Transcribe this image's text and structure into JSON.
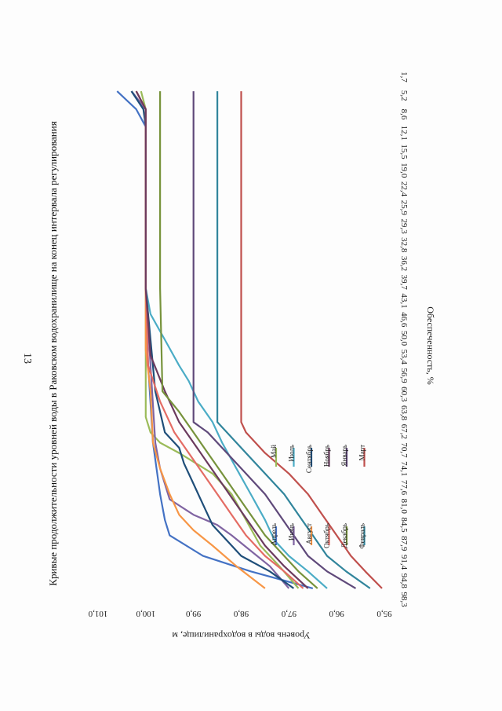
{
  "page_number": "13",
  "chart_data": {
    "type": "line",
    "title": "Кривые продолжительности уровней воды в Раковском водохранилище на конец интервала регулирования",
    "xlabel": "Обеспеченность, %",
    "ylabel": "Уровень воды в водохранилище, м",
    "categories": [
      "1,7",
      "5,2",
      "8,6",
      "12,1",
      "15,5",
      "19,0",
      "22,4",
      "25,9",
      "29,3",
      "32,8",
      "36,2",
      "39,7",
      "43,1",
      "46,6",
      "50,0",
      "53,4",
      "56,9",
      "60,3",
      "63,8",
      "67,2",
      "70,7",
      "74,1",
      "77,6",
      "81,0",
      "84,5",
      "87,9",
      "91,4",
      "94,8",
      "98,3"
    ],
    "xlim": [
      0,
      100
    ],
    "ylim": [
      95.0,
      101.0
    ],
    "yticks": [
      "101,0",
      "100,0",
      "99,0",
      "98,0",
      "97,0",
      "96,0",
      "95,0"
    ],
    "ytick_values": [
      101,
      100,
      99,
      98,
      97,
      96,
      95
    ],
    "legend_position": "inside",
    "series": [
      {
        "name": "Апрель",
        "color": "#4472c4",
        "x": [
          1.7,
          5.2,
          8.6,
          40,
          55,
          70,
          80,
          85,
          88,
          92,
          95,
          98.3
        ],
        "y": [
          100.6,
          100.2,
          100.0,
          100.0,
          99.95,
          99.85,
          99.7,
          99.6,
          99.5,
          98.8,
          97.8,
          96.5
        ]
      },
      {
        "name": "Май",
        "color": "#9bbb59",
        "x": [
          1.7,
          5.2,
          8.6,
          40,
          50,
          60,
          65,
          68,
          70,
          72,
          76,
          80,
          85,
          90,
          94,
          98.3
        ],
        "y": [
          100.1,
          100.0,
          100.0,
          100.0,
          100.0,
          100.0,
          100.0,
          99.9,
          99.7,
          99.3,
          98.6,
          98.2,
          97.9,
          97.6,
          97.2,
          96.8
        ]
      },
      {
        "name": "Июль",
        "color": "#4bacc6",
        "x": [
          1.7,
          5.2,
          8.6,
          40,
          45,
          50,
          55,
          58,
          62,
          66,
          70,
          75,
          80,
          85,
          89,
          92,
          95,
          98.3
        ],
        "y": [
          100.3,
          100.0,
          100.0,
          100.0,
          99.9,
          99.6,
          99.3,
          99.1,
          98.9,
          98.6,
          98.4,
          98.1,
          97.8,
          97.5,
          97.3,
          97.0,
          96.6,
          96.2
        ]
      },
      {
        "name": "Июнь",
        "color": "#8064a2",
        "x": [
          1.7,
          5.2,
          8.6,
          40,
          55,
          70,
          75,
          78,
          81,
          84,
          86,
          88,
          91,
          94,
          98.3
        ],
        "y": [
          100.3,
          100.0,
          100.0,
          100.0,
          99.9,
          99.8,
          99.7,
          99.6,
          99.5,
          99.0,
          98.5,
          98.2,
          97.8,
          97.4,
          97.0
        ]
      },
      {
        "name": "Сентябрь",
        "color": "#1f4e79",
        "x": [
          1.7,
          5.2,
          8.6,
          40,
          50,
          60,
          68,
          71,
          74,
          78,
          82,
          86,
          89,
          92,
          95,
          98.3
        ],
        "y": [
          100.3,
          100.05,
          100.0,
          100.0,
          99.9,
          99.8,
          99.6,
          99.3,
          99.2,
          99.0,
          98.8,
          98.6,
          98.3,
          98.0,
          97.4,
          96.9
        ]
      },
      {
        "name": "Август",
        "color": "#f79646",
        "x": [
          1.7,
          5.2,
          8.6,
          40,
          52,
          60,
          70,
          75,
          80,
          84,
          87,
          90,
          94,
          98.3
        ],
        "y": [
          100.2,
          100.0,
          100.0,
          100.0,
          100.0,
          99.9,
          99.85,
          99.7,
          99.5,
          99.3,
          99.0,
          98.6,
          98.1,
          97.5
        ]
      },
      {
        "name": "Октябрь",
        "color": "#e46c64",
        "x": [
          1.7,
          5.2,
          8.6,
          40,
          55,
          62,
          68,
          72,
          76,
          80,
          84,
          88,
          92,
          95,
          98.3
        ],
        "y": [
          100.2,
          100.0,
          100.0,
          100.0,
          99.95,
          99.7,
          99.4,
          99.1,
          98.8,
          98.5,
          98.2,
          97.9,
          97.5,
          97.1,
          96.7
        ]
      },
      {
        "name": "Ноябрь",
        "color": "#6b3a5e",
        "x": [
          1.7,
          5.2,
          8.6,
          40,
          53,
          60,
          66,
          70,
          74,
          78,
          82,
          86,
          90,
          94,
          98.3
        ],
        "y": [
          100.2,
          100.0,
          100.0,
          100.0,
          99.9,
          99.6,
          99.3,
          99.0,
          98.7,
          98.4,
          98.1,
          97.8,
          97.5,
          97.1,
          96.6
        ]
      },
      {
        "name": "Декабрь",
        "color": "#77933c",
        "x": [
          1.7,
          5.2,
          8.6,
          40,
          60,
          64,
          68,
          72,
          76,
          80,
          84,
          88,
          92,
          95,
          98.3
        ],
        "y": [
          99.7,
          99.7,
          99.7,
          99.7,
          99.65,
          99.3,
          99.0,
          98.7,
          98.4,
          98.1,
          97.8,
          97.5,
          97.1,
          96.8,
          96.4
        ]
      },
      {
        "name": "Январь",
        "color": "#5f497a",
        "x": [
          1.7,
          5.2,
          8.6,
          40,
          60,
          66,
          68,
          72,
          76,
          80,
          84,
          88,
          92,
          95,
          98.3
        ],
        "y": [
          99.0,
          99.0,
          99.0,
          99.0,
          99.0,
          99.0,
          98.7,
          98.3,
          97.9,
          97.5,
          97.2,
          96.9,
          96.6,
          96.2,
          95.6
        ]
      },
      {
        "name": "Февраль",
        "color": "#31859c",
        "x": [
          1.7,
          5.2,
          8.6,
          40,
          60,
          66,
          68,
          72,
          76,
          80,
          84,
          88,
          92,
          95,
          98.3
        ],
        "y": [
          98.5,
          98.5,
          98.5,
          98.5,
          98.5,
          98.5,
          98.3,
          97.9,
          97.5,
          97.1,
          96.8,
          96.5,
          96.2,
          95.8,
          95.3
        ]
      },
      {
        "name": "Март",
        "color": "#c0504d",
        "x": [
          1.7,
          5.2,
          8.6,
          40,
          60,
          66,
          68,
          72,
          76,
          80,
          84,
          88,
          92,
          95,
          98.3
        ],
        "y": [
          98.0,
          98.0,
          98.0,
          98.0,
          98.0,
          98.0,
          97.9,
          97.5,
          97.0,
          96.6,
          96.3,
          96.0,
          95.7,
          95.4,
          95.05
        ]
      }
    ],
    "legend": [
      [
        "Апрель",
        "Май"
      ],
      [
        "Июнь",
        "Июль"
      ],
      [
        "Август",
        "Сентябрь"
      ],
      [
        "Октябрь",
        "Ноябрь"
      ],
      [
        "Декабрь",
        "Январь"
      ],
      [
        "Февраль",
        "Март"
      ]
    ]
  }
}
